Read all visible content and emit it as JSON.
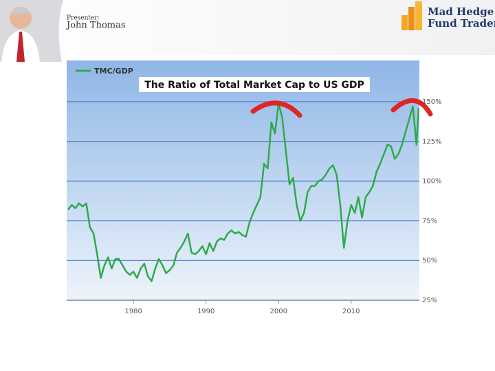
{
  "header": {
    "presenter_label": "Presenter:",
    "presenter_name": "John Thomas",
    "logo_line1": "Mad Hedge",
    "logo_line2": "Fund Trader"
  },
  "chart_data": {
    "type": "line",
    "title": "The Ratio of Total Market Cap to US GDP",
    "x": [
      1971,
      1971.5,
      1972,
      1972.5,
      1973,
      1973.5,
      1974,
      1974.5,
      1975,
      1975.5,
      1976,
      1976.5,
      1977,
      1977.5,
      1978,
      1978.5,
      1979,
      1979.5,
      1980,
      1980.5,
      1981,
      1981.5,
      1982,
      1982.5,
      1983,
      1983.5,
      1984,
      1984.5,
      1985,
      1985.5,
      1986,
      1986.5,
      1987,
      1987.5,
      1988,
      1988.5,
      1989,
      1989.5,
      1990,
      1990.5,
      1991,
      1991.5,
      1992,
      1992.5,
      1993,
      1993.5,
      1994,
      1994.5,
      1995,
      1995.5,
      1996,
      1996.5,
      1997,
      1997.5,
      1998,
      1998.5,
      1999,
      1999.5,
      2000,
      2000.5,
      2001,
      2001.5,
      2002,
      2002.5,
      2003,
      2003.5,
      2004,
      2004.5,
      2005,
      2005.5,
      2006,
      2006.5,
      2007,
      2007.5,
      2008,
      2008.5,
      2009,
      2009.5,
      2010,
      2010.5,
      2011,
      2011.5,
      2012,
      2012.5,
      2013,
      2013.5,
      2014,
      2014.5,
      2015,
      2015.5,
      2016,
      2016.5,
      2017,
      2017.5,
      2018,
      2018.5,
      2019,
      2019.3
    ],
    "series": [
      {
        "name": "TMC/GDP",
        "color": "#2eaa4a",
        "values": [
          82,
          85,
          83,
          86,
          84,
          86,
          71,
          67,
          54,
          39,
          47,
          52,
          45,
          51,
          51,
          47,
          43,
          41,
          43,
          39,
          45,
          48,
          40,
          37,
          45,
          51,
          47,
          42,
          44,
          47,
          55,
          58,
          62,
          67,
          55,
          54,
          56,
          59,
          54,
          61,
          56,
          62,
          64,
          63,
          67,
          69,
          67,
          68,
          66,
          65,
          74,
          80,
          85,
          90,
          111,
          108,
          137,
          130,
          149,
          140,
          119,
          98,
          102,
          85,
          75,
          80,
          93,
          97,
          97,
          100,
          101,
          104,
          108,
          110,
          104,
          85,
          58,
          75,
          85,
          80,
          90,
          77,
          90,
          93,
          97,
          106,
          111,
          117,
          123,
          122,
          114,
          117,
          123,
          131,
          139,
          147,
          123,
          146
        ]
      }
    ],
    "xlim": [
      1970.8,
      2019.4
    ],
    "xticks": [
      1980,
      1990,
      2000,
      2010
    ],
    "ylim": [
      25,
      176
    ],
    "yticks": [
      {
        "value": 25,
        "label": "25%"
      },
      {
        "value": 50,
        "label": "50%"
      },
      {
        "value": 75,
        "label": "75%"
      },
      {
        "value": 100,
        "label": "100%"
      },
      {
        "value": 125,
        "label": "125%"
      },
      {
        "value": 150,
        "label": "150%"
      }
    ],
    "grid": true,
    "legend": "top-left"
  }
}
